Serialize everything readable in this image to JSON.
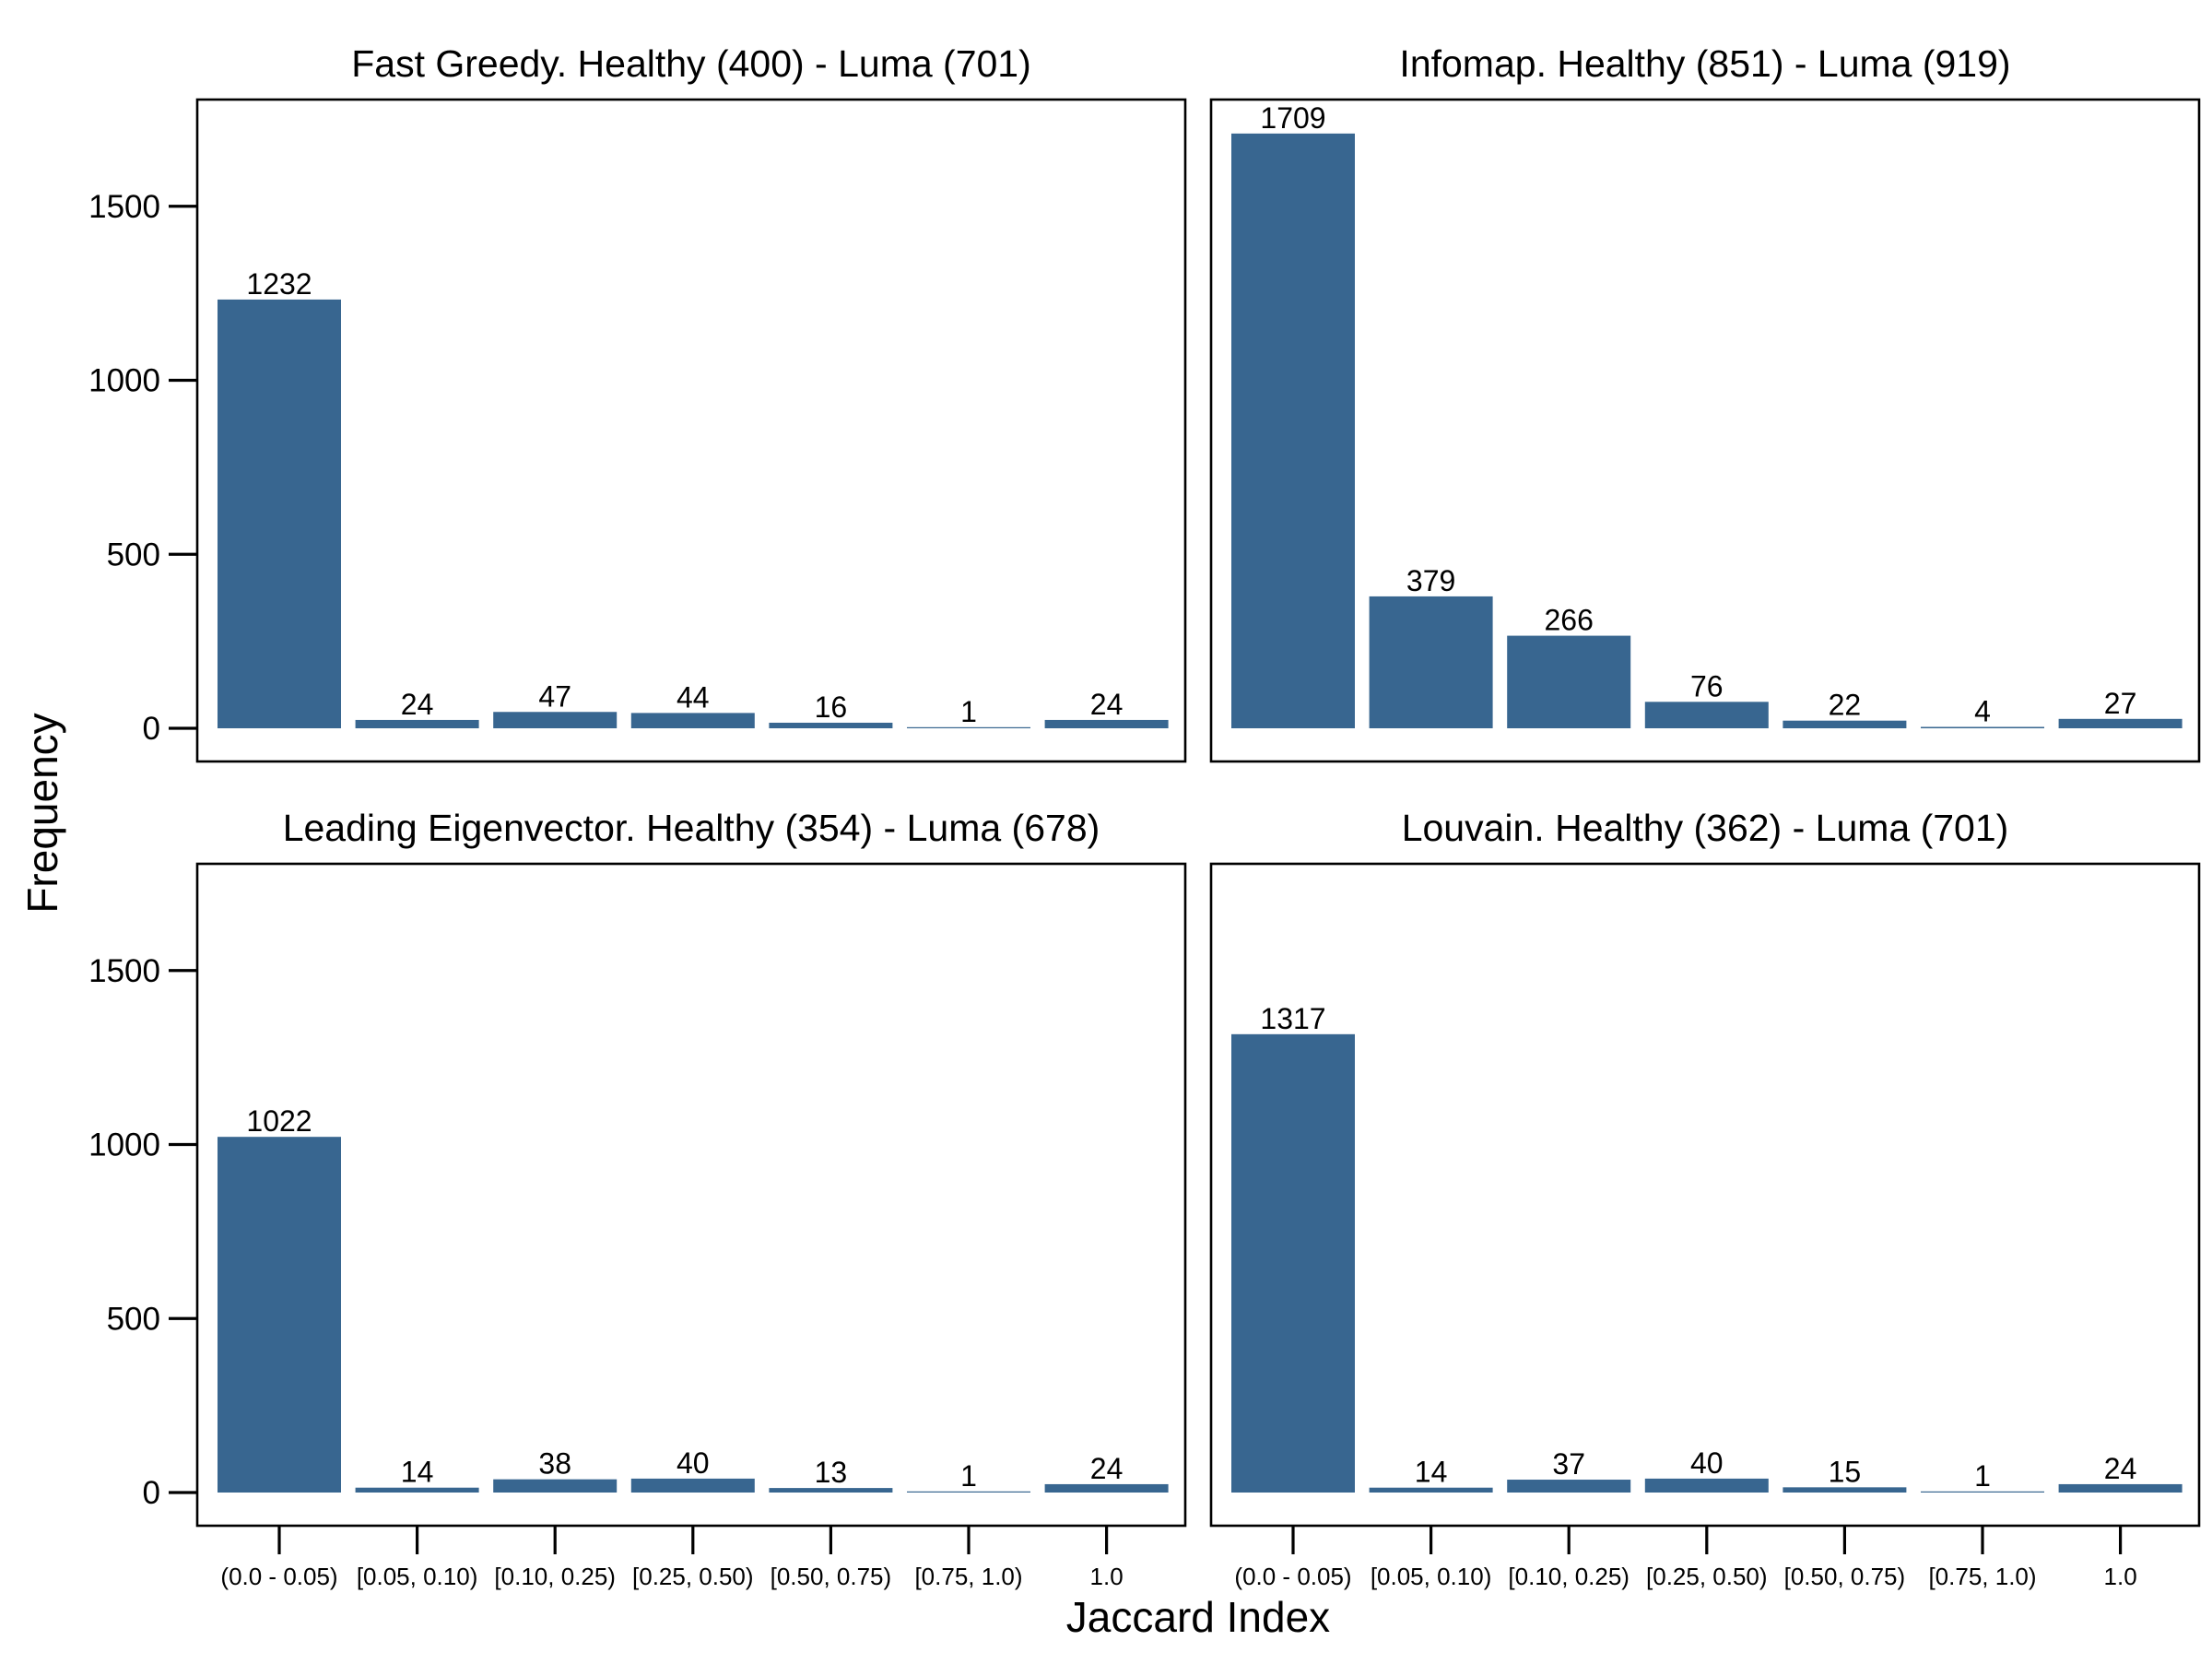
{
  "chart_data": {
    "type": "bar",
    "ylabel": "Frequency",
    "xlabel": "Jaccard Index",
    "ylim": [
      0,
      1800
    ],
    "yticks": [
      0,
      500,
      1000,
      1500
    ],
    "ytick_labels": [
      "0",
      "500",
      "1000",
      "1500"
    ],
    "categories": [
      "(0.0 - 0.05)",
      "[0.05, 0.10)",
      "[0.10, 0.25)",
      "[0.25, 0.50)",
      "[0.50, 0.75)",
      "[0.75, 1.0)",
      "1.0"
    ],
    "bar_color": "#386690",
    "grid": false,
    "sharey": true,
    "sharex": true,
    "panels": [
      {
        "title": "Fast Greedy. Healthy (400) - Luma (701)",
        "values": [
          1232,
          24,
          47,
          44,
          16,
          1,
          24
        ]
      },
      {
        "title": "Infomap. Healthy (851) - Luma (919)",
        "values": [
          1709,
          379,
          266,
          76,
          22,
          4,
          27
        ]
      },
      {
        "title": "Leading Eigenvector. Healthy (354) - Luma (678)",
        "values": [
          1022,
          14,
          38,
          40,
          13,
          1,
          24
        ]
      },
      {
        "title": "Louvain. Healthy (362) - Luma (701)",
        "values": [
          1317,
          14,
          37,
          40,
          15,
          1,
          24
        ]
      }
    ]
  }
}
